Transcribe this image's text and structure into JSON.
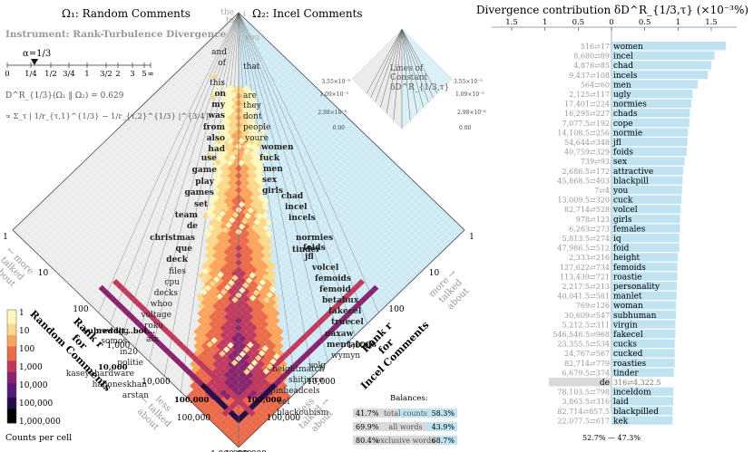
{
  "allotax": {
    "title_left": "Ω₁: Random Comments",
    "title_right": "Ω₂: Incel Comments",
    "instrument": "Instrument: Rank-Turbulence Divergence",
    "alpha_label": "α=1/3",
    "alpha_ticks": [
      "0",
      "1/4",
      "1/2",
      "3/4",
      "1",
      "3/2",
      "2",
      "3",
      "5",
      "∞"
    ],
    "divergence_value": "D^R_{1/3}(Ω₁ ‖ Ω₂) = 0.629",
    "formula": "∝ Σ_τ | 1/r_{τ,1}^{1/3} − 1/r_{τ,2}^{1/3} |^{3/4}",
    "left_axis_ticks": [
      "1",
      "10",
      "100",
      "1,000",
      "10,000",
      "100,000",
      "1,000,000"
    ],
    "right_axis_ticks": [
      "1",
      "10",
      "100",
      "1,000",
      "10,000",
      "100,000",
      "1,000,000"
    ],
    "left_rank_label": [
      "Rank r",
      "for",
      "Random Comments"
    ],
    "right_rank_label": [
      "Rank r",
      "for",
      "Incel Comments"
    ],
    "more_talked_left": [
      "← more",
      "talked",
      "about"
    ],
    "more_talked_right": [
      "more →",
      "talked",
      "about"
    ],
    "less_talked_left": [
      "less",
      "← talked",
      "about"
    ],
    "less_talked_right": [
      "less",
      "talked →",
      "about"
    ],
    "left_words": [
      "the",
      "to",
      "and",
      "of",
      "this",
      "on",
      "my",
      "was",
      "from",
      "also",
      "had",
      "use",
      "game",
      "play",
      "games",
      "set",
      "team",
      "de",
      "christmas",
      "que",
      "deck",
      "files",
      "cpu",
      "decks",
      "whoo",
      "voltage",
      "roku",
      "atx",
      "newegg",
      "somos",
      "in20",
      "politie",
      "kaseyahardware",
      "haljoneskhan",
      "arstan"
    ],
    "right_words": [
      "i",
      "you",
      "that",
      "are",
      "they",
      "dont",
      "people",
      "youre",
      "women",
      "fuck",
      "men",
      "sex",
      "girls",
      "chad",
      "incel",
      "incels",
      "tinder",
      "normies",
      "foids",
      "jfl",
      "volcel",
      "femoids",
      "femoid",
      "betabux",
      "fakecel",
      "truecel",
      "uaxaw",
      "mentalcels",
      "wymyn",
      "volg",
      "heightmatch",
      "shitjuice",
      "pinheadcels",
      "cel",
      "blackcubism"
    ],
    "low_left_words": [
      "subreddit...bot...",
      "10,000",
      "100,000"
    ],
    "low_right_words": [
      "100,000"
    ],
    "colorbar_ticks": [
      "1",
      "10",
      "100",
      "1,000",
      "10,000",
      "100,000",
      "1,000,000"
    ],
    "colorbar_label": "Counts per cell",
    "lens_title": [
      "Lines of",
      "Constant",
      "δD^R_{1/3,τ}"
    ],
    "lens_left_ticks": [
      "3.55×10⁻⁵",
      "1.09×10⁻⁵",
      "2.98×10⁻⁶",
      "0.00"
    ],
    "lens_right_ticks": [
      "3.55×10⁻⁵",
      "1.09×10⁻⁵",
      "2.98×10⁻⁶",
      "0.00"
    ],
    "balances": {
      "title": "Balances:",
      "rows": [
        {
          "left": "41.7%",
          "label": "total counts",
          "right": "58.3%"
        },
        {
          "left": "69.9%",
          "label": "all words",
          "right": "43.9%"
        },
        {
          "left": "80.4%",
          "label": "exclusive words",
          "right": "68.7%"
        }
      ]
    },
    "colors": {
      "left_bg": "#ebebeb",
      "right_bg": "#cde9f4",
      "bar_blue": "#bfe3f1",
      "bar_grey": "#d9d9d9",
      "cmap": [
        "#fdf7c0",
        "#fcd88a",
        "#fba55d",
        "#ea6a4a",
        "#c03a5f",
        "#8a226e",
        "#561a78",
        "#250c4a",
        "#000000"
      ]
    }
  },
  "chart_data": {
    "type": "bar",
    "title": "Divergence contribution δD^R_{1/3,τ} (×10⁻³%)",
    "xticks": [
      "1.5",
      "1",
      "0.5",
      "0",
      "0.5",
      "1",
      "1.5"
    ],
    "xlim": [
      -1.8,
      1.8
    ],
    "footer": "52.7% — 47.3%",
    "categories": [
      "women",
      "incel",
      "chad",
      "incels",
      "men",
      "ugly",
      "normies",
      "chads",
      "cope",
      "normie",
      "jfl",
      "foids",
      "sex",
      "attractive",
      "blackpill",
      "you",
      "cuck",
      "volcel",
      "girls",
      "females",
      "iq",
      "foid",
      "height",
      "femoids",
      "roastie",
      "personality",
      "manlet",
      "woman",
      "subhuman",
      "virgin",
      "fakecel",
      "cucks",
      "cucked",
      "roasties",
      "tinder",
      "de",
      "inceldom",
      "laid",
      "blackpilled",
      "kek"
    ],
    "rank_labels": [
      "516⇄17",
      "8,680⇄89",
      "4,876⇄85",
      "9,437⇄108",
      "564⇄60",
      "2,125⇄117",
      "17,401⇄224",
      "16,295⇄227",
      "7,077.5⇄192",
      "14,108.5⇄256",
      "54,644⇄348",
      "40,759⇄329",
      "739⇄93",
      "2,686.5⇄172",
      "45,868.5⇄403",
      "7⇄4",
      "13,009.5⇄320",
      "82,714⇄528",
      "978⇄123",
      "6,263⇄273",
      "5,813.5⇄274",
      "47,986.5⇄512",
      "2,333⇄216",
      "127,622⇄734",
      "113,439⇄721",
      "2,217.5⇄213",
      "40,041.5⇄581",
      "769⇄126",
      "30,609⇄547",
      "5,212.5⇄311",
      "546,546.5⇄968",
      "23,355.5⇄534",
      "24,767⇄567",
      "82,714⇄779",
      "6,679.5⇄374",
      "316⇄4,322.5",
      "78,103.5⇄798",
      "3,863.5⇄316",
      "82,714⇄857.5",
      "22,077.5⇄617"
    ],
    "values": [
      1.72,
      1.55,
      1.5,
      1.45,
      1.3,
      1.22,
      1.2,
      1.18,
      1.17,
      1.15,
      1.14,
      1.13,
      1.1,
      1.08,
      1.07,
      1.06,
      1.05,
      1.04,
      1.03,
      1.03,
      1.02,
      1.02,
      1.0,
      0.99,
      0.99,
      0.98,
      0.98,
      0.97,
      0.97,
      0.96,
      0.96,
      0.95,
      0.95,
      0.95,
      0.94,
      -0.94,
      0.93,
      0.93,
      0.92,
      0.92
    ]
  }
}
